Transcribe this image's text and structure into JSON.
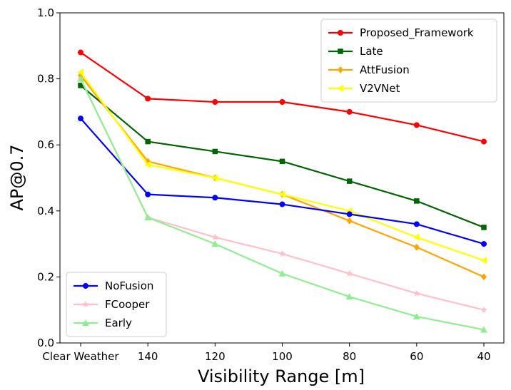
{
  "chart_data": {
    "type": "line",
    "title": "",
    "xlabel": "Visibility Range [m]",
    "ylabel": "AP@0.7",
    "categories": [
      "Clear Weather",
      "140",
      "120",
      "100",
      "80",
      "60",
      "40"
    ],
    "ylim": [
      0.0,
      1.0
    ],
    "yticks": [
      "0.0",
      "0.2",
      "0.4",
      "0.6",
      "0.8",
      "1.0"
    ],
    "grid": false,
    "series": [
      {
        "name": "Proposed_Framework",
        "color": "#ff0000",
        "marker": "circle",
        "values": [
          0.88,
          0.74,
          0.73,
          0.73,
          0.7,
          0.66,
          0.61
        ]
      },
      {
        "name": "Late",
        "color": "#006400",
        "marker": "square",
        "values": [
          0.78,
          0.61,
          0.58,
          0.55,
          0.49,
          0.43,
          0.35
        ]
      },
      {
        "name": "AttFusion",
        "color": "#ffa500",
        "marker": "diamond",
        "values": [
          0.81,
          0.55,
          0.5,
          0.45,
          0.37,
          0.29,
          0.2
        ]
      },
      {
        "name": "V2VNet",
        "color": "#ffff00",
        "marker": "triangle-left",
        "values": [
          0.82,
          0.54,
          0.5,
          0.45,
          0.4,
          0.32,
          0.25
        ]
      },
      {
        "name": "NoFusion",
        "color": "#0000ff",
        "marker": "circle",
        "values": [
          0.68,
          0.45,
          0.44,
          0.42,
          0.39,
          0.36,
          0.3
        ]
      },
      {
        "name": "FCooper",
        "color": "#ffc0cb",
        "marker": "star",
        "values": [
          0.8,
          0.38,
          0.32,
          0.27,
          0.21,
          0.15,
          0.1
        ]
      },
      {
        "name": "Early",
        "color": "#90ee90",
        "marker": "triangle-up",
        "values": [
          0.8,
          0.38,
          0.3,
          0.21,
          0.14,
          0.08,
          0.04
        ]
      }
    ],
    "legends": [
      {
        "placement": "top-right",
        "items": [
          "Proposed_Framework",
          "Late",
          "AttFusion",
          "V2VNet"
        ]
      },
      {
        "placement": "bottom-left",
        "items": [
          "NoFusion",
          "FCooper",
          "Early"
        ]
      }
    ]
  }
}
